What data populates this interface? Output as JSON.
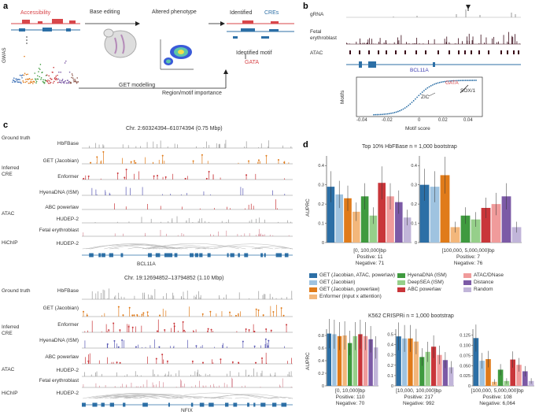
{
  "panel_labels": {
    "a": "a",
    "b": "b",
    "c": "c",
    "d": "d"
  },
  "panel_a": {
    "accessibility": "Accessibility",
    "gwas": "GWAS",
    "base_editing": "Base editing",
    "altered_phenotype": "Altered phenotype",
    "identified": "Identified",
    "cres": "CREs",
    "identified_motif": "Identified motif",
    "gata": "GATA",
    "get_modelling": "GET modelling",
    "region_motif": "Region/motif importance"
  },
  "panel_b": {
    "tracks": [
      "gRNA",
      "Fetal erythroblast",
      "ATAC"
    ],
    "gene": "BCL11A",
    "xlabel": "Motif score",
    "ylabel": "Motifs",
    "ticks": [
      "-0.04",
      "-0.02",
      "0",
      "0.02",
      "0.04"
    ],
    "annot": {
      "gata": "GATA",
      "zic": "ZIC",
      "sox": "SOX/1"
    }
  },
  "panel_c": {
    "top": {
      "title": "Chr. 2:60324394–61074394 (0.75 Mbp)",
      "gene": "BCL11A",
      "groups": [
        {
          "name": "Ground truth",
          "tracks": [
            "HbFBase"
          ]
        },
        {
          "name": "Inferred CRE",
          "tracks": [
            "GET (Jacobian)",
            "Enformer",
            "HyenaDNA (ISM)",
            "ABC powerlaw"
          ]
        },
        {
          "name": "ATAC",
          "tracks": [
            "HUDEP-2",
            "Fetal erythroblast"
          ]
        },
        {
          "name": "HiChIP",
          "tracks": [
            "HUDEP-2"
          ]
        }
      ]
    },
    "bottom": {
      "title": "Chr. 19:12694852–13794852 (1.10 Mbp)",
      "gene": "NFIX",
      "groups": [
        {
          "name": "Ground truth",
          "tracks": [
            "HbFBase"
          ]
        },
        {
          "name": "Inferred CRE",
          "tracks": [
            "GET (Jacobian)",
            "Enformer",
            "HyenaDNA (ISM)",
            "ABC powerlaw"
          ]
        },
        {
          "name": "ATAC",
          "tracks": [
            "HUDEP-2",
            "Fetal erythroblast"
          ]
        },
        {
          "name": "HiChIP",
          "tracks": [
            "HUDEP-2"
          ]
        }
      ]
    }
  },
  "chart_data": [
    {
      "type": "bar",
      "title": "Top 10% HbFBase n = 1,000 bootstrap",
      "ylabel": "AUPRC",
      "ylim": [
        0,
        0.45
      ],
      "yticks": [
        "0",
        "0.1",
        "0.2",
        "0.3",
        "0.4"
      ],
      "groups": [
        {
          "range": "[0, 100,000]bp",
          "positive": "Positive: 11",
          "negative": "Negative: 71",
          "values": [
            0.29,
            0.25,
            0.23,
            0.16,
            0.24,
            0.14,
            0.31,
            0.24,
            0.21,
            0.13
          ]
        },
        {
          "range": "[100,000, 5,000,000]bp",
          "positive": "Positive: 7",
          "negative": "Negative: 76",
          "values": [
            0.3,
            0.29,
            0.35,
            0.08,
            0.14,
            0.12,
            0.18,
            0.2,
            0.24,
            0.08
          ]
        }
      ]
    },
    {
      "type": "bar",
      "title": "K562 CRISPRi n = 1,000 bootstrap",
      "ylabel": "AUPRC",
      "groups": [
        {
          "range": "[0, 10,000]bp",
          "positive": "Positive: 110",
          "negative": "Negative: 70",
          "ylim": [
            0,
            0.9
          ],
          "yticks": [
            "0",
            "0.2",
            "0.4",
            "0.6",
            "0.8"
          ],
          "values": [
            0.83,
            0.82,
            0.79,
            0.8,
            0.68,
            0.79,
            0.82,
            0.79,
            0.74,
            0.61
          ]
        },
        {
          "range": "[10,000, 100,000]bp",
          "positive": "Positive: 217",
          "negative": "Negative: 992",
          "ylim": [
            0,
            0.55
          ],
          "yticks": [
            "0",
            "0.1",
            "0.2",
            "0.3",
            "0.4",
            "0.5"
          ],
          "values": [
            0.48,
            0.46,
            0.46,
            0.43,
            0.28,
            0.33,
            0.38,
            0.3,
            0.25,
            0.18
          ]
        },
        {
          "range": "[100,000, 5,000,000]bp",
          "positive": "Positive: 108",
          "negative": "Negative: 6,064",
          "ylim": [
            0,
            0.14
          ],
          "yticks": [
            "0",
            "0.025",
            "0.050",
            "0.075",
            "0.100",
            "0.125"
          ],
          "values": [
            0.118,
            0.062,
            0.066,
            0.01,
            0.04,
            0.012,
            0.065,
            0.052,
            0.036,
            0.012
          ]
        }
      ]
    }
  ],
  "legend": [
    {
      "label": "GET (Jacobian, ATAC, powerlaw)",
      "color": "#2c6fa6"
    },
    {
      "label": "GET (Jacobian)",
      "color": "#9fc3e0"
    },
    {
      "label": "GET (Jacobian, powerlaw)",
      "color": "#e07b1a"
    },
    {
      "label": "Enformer (input x attention)",
      "color": "#f3b77b"
    },
    {
      "label": "HyenaDNA (ISM)",
      "color": "#3f9a3f"
    },
    {
      "label": "DeepSEA (ISM)",
      "color": "#96cf8a"
    },
    {
      "label": "ABC powerlaw",
      "color": "#c9363a"
    },
    {
      "label": "ATAC/DNase",
      "color": "#f09b9b"
    },
    {
      "label": "Distance",
      "color": "#7c5aa6"
    },
    {
      "label": "Random",
      "color": "#c1b5d9"
    }
  ]
}
